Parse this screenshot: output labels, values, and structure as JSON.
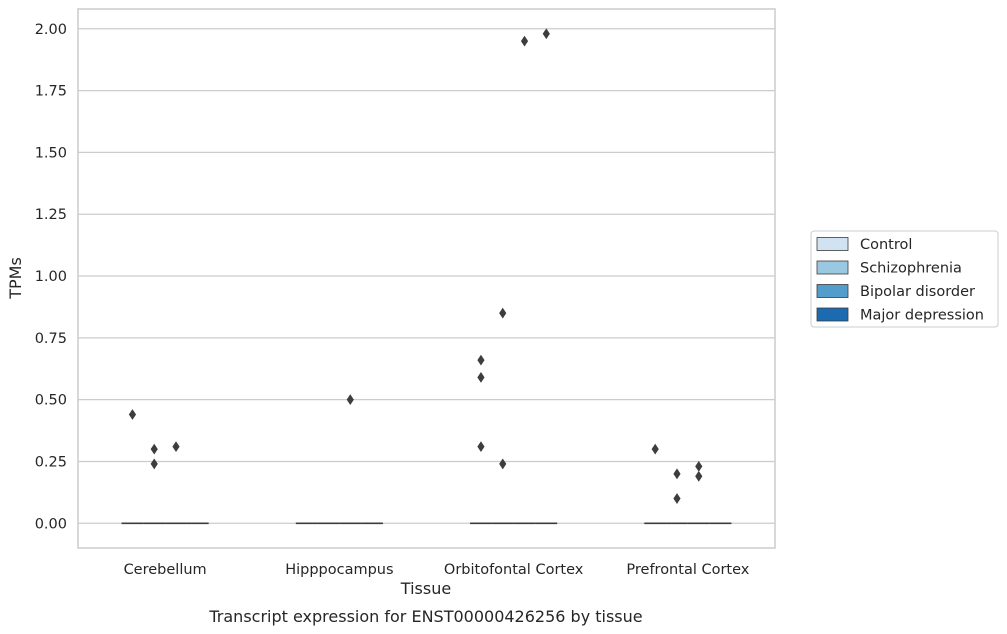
{
  "chart_data": {
    "type": "box",
    "caption": "Transcript expression for ENST00000426256 by tissue",
    "xlabel": "Tissue",
    "ylabel": "TPMs",
    "ylim": [
      -0.1,
      2.08
    ],
    "yticks": [
      0.0,
      0.25,
      0.5,
      0.75,
      1.0,
      1.25,
      1.5,
      1.75,
      2.0
    ],
    "ytick_labels": [
      "0.00",
      "0.25",
      "0.50",
      "0.75",
      "1.00",
      "1.25",
      "1.50",
      "1.75",
      "2.00"
    ],
    "grid": "horizontal",
    "legend_placement": "right",
    "categories": [
      "Cerebellum",
      "Hipppocampus",
      "Orbitofontal Cortex",
      "Prefrontal Cortex"
    ],
    "series": [
      {
        "name": "Control",
        "color": "#d1e3f2",
        "median": [
          0,
          0,
          0,
          0
        ],
        "outliers": [
          [
            0.44
          ],
          [],
          [
            0.66,
            0.59,
            0.31
          ],
          [
            0.3
          ]
        ]
      },
      {
        "name": "Schizophrenia",
        "color": "#9ac8e0",
        "median": [
          0,
          0,
          0,
          0
        ],
        "outliers": [
          [
            0.3,
            0.24
          ],
          [],
          [
            0.85,
            0.24
          ],
          [
            0.2,
            0.1
          ]
        ]
      },
      {
        "name": "Bipolar disorder",
        "color": "#529dcc",
        "median": [
          0,
          0,
          0,
          0
        ],
        "outliers": [
          [
            0.31
          ],
          [
            0.5
          ],
          [
            1.95
          ],
          [
            0.23,
            0.19
          ]
        ]
      },
      {
        "name": "Major depression",
        "color": "#1c6aaf",
        "median": [
          0,
          0,
          0,
          0
        ],
        "outliers": [
          [],
          [],
          [
            1.98
          ],
          []
        ]
      }
    ]
  }
}
